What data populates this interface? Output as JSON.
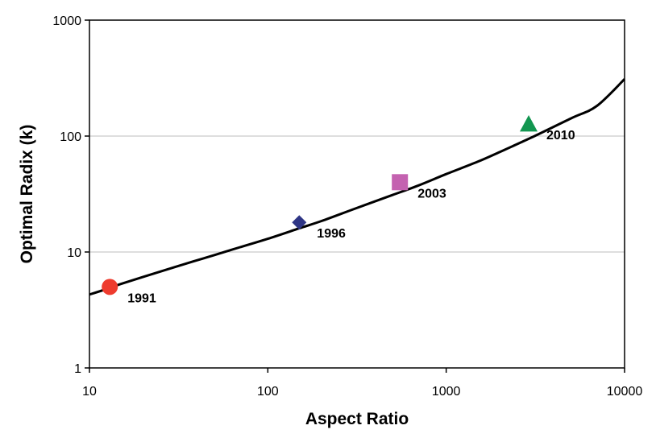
{
  "chart_data": {
    "type": "line",
    "title": "",
    "xlabel": "Aspect Ratio",
    "ylabel": "Optimal Radix (k)",
    "x_scale": "log",
    "y_scale": "log",
    "xlim": [
      10,
      10000
    ],
    "ylim": [
      1,
      1000
    ],
    "x_ticks": [
      "10",
      "100",
      "1000",
      "10000"
    ],
    "y_ticks": [
      "1",
      "10",
      "100",
      "1000"
    ],
    "grid": "horizontal",
    "legend": "none",
    "curve": {
      "x": [
        10,
        12,
        15,
        20,
        30,
        50,
        70,
        100,
        150,
        200,
        300,
        500,
        700,
        1000,
        1500,
        2000,
        3000,
        5000,
        7000,
        10000
      ],
      "y": [
        4.3,
        4.7,
        5.3,
        6.1,
        7.4,
        9.4,
        11.0,
        13.0,
        16.0,
        18.5,
        23.3,
        31.0,
        37.5,
        47.0,
        60.0,
        73.0,
        97.0,
        142.0,
        182.0,
        310.0
      ],
      "color": "#000000"
    },
    "points": [
      {
        "label": "1991",
        "x": 13,
        "y": 5,
        "marker": "circle",
        "color": "#ee3b2e"
      },
      {
        "label": "1996",
        "x": 150,
        "y": 18,
        "marker": "diamond",
        "color": "#2e3585"
      },
      {
        "label": "2003",
        "x": 550,
        "y": 40,
        "marker": "square",
        "color": "#c462b0"
      },
      {
        "label": "2010",
        "x": 2900,
        "y": 127,
        "marker": "triangle",
        "color": "#129650"
      }
    ]
  }
}
